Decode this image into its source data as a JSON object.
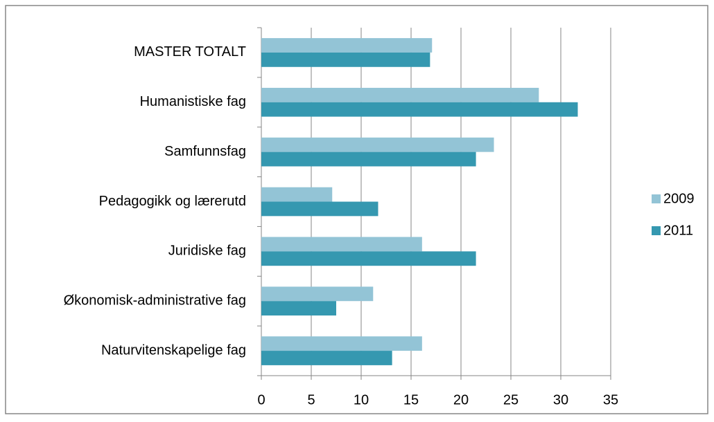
{
  "chart_data": {
    "type": "bar",
    "orientation": "horizontal",
    "categories": [
      "MASTER TOTALT",
      "Humanistiske fag",
      "Samfunnsfag",
      "Pedagogikk og lærerutd",
      "Juridiske fag",
      "Økonomisk-administrative fag",
      "Naturvitenskapelige fag"
    ],
    "series": [
      {
        "name": "2009",
        "color": "#93c4d6",
        "values": [
          17.1,
          27.8,
          23.3,
          7.1,
          16.1,
          11.2,
          16.1
        ]
      },
      {
        "name": "2011",
        "color": "#3598b0",
        "values": [
          16.9,
          31.7,
          21.5,
          11.7,
          21.5,
          7.5,
          13.1
        ]
      }
    ],
    "xlim": [
      0,
      35
    ],
    "xticks": [
      0,
      5,
      10,
      15,
      20,
      25,
      30,
      35
    ],
    "grid": true,
    "legend": "right"
  }
}
